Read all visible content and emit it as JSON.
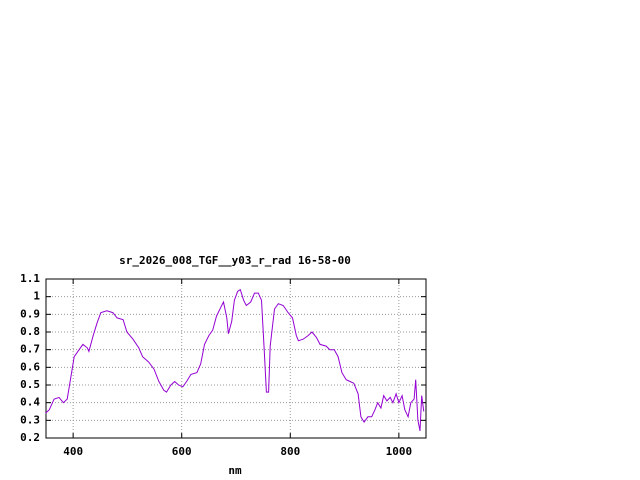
{
  "chart_data": {
    "type": "line",
    "title": "sr_2026_008_TGF__y03_r_rad 16-58-00",
    "xlabel": "nm",
    "xlim": [
      350,
      1050
    ],
    "xticks": [
      400,
      600,
      800,
      1000
    ],
    "ylim": [
      0.2,
      1.1
    ],
    "yticks": [
      0.2,
      0.3,
      0.4,
      0.5,
      0.6,
      0.7,
      0.8,
      0.9,
      1,
      1.1
    ],
    "grid": true,
    "x": [
      349,
      356,
      365,
      374,
      382,
      389,
      396,
      402,
      411,
      418,
      426,
      429,
      437,
      444,
      451,
      462,
      473,
      481,
      492,
      499,
      510,
      521,
      528,
      539,
      549,
      558,
      567,
      572,
      580,
      587,
      594,
      602,
      609,
      617,
      628,
      635,
      642,
      650,
      657,
      664,
      672,
      677,
      683,
      686,
      692,
      697,
      703,
      708,
      714,
      719,
      727,
      734,
      741,
      747,
      752,
      756,
      760,
      763,
      771,
      778,
      787,
      796,
      804,
      811,
      815,
      824,
      833,
      840,
      848,
      855,
      866,
      873,
      881,
      888,
      895,
      903,
      910,
      917,
      925,
      930,
      936,
      943,
      950,
      956,
      961,
      967,
      972,
      978,
      984,
      989,
      995,
      1000,
      1006,
      1011,
      1017,
      1022,
      1028,
      1031,
      1035,
      1039,
      1042,
      1046
    ],
    "series": [
      {
        "color": "#9400d3",
        "values": [
          0.34,
          0.36,
          0.42,
          0.43,
          0.4,
          0.42,
          0.55,
          0.66,
          0.7,
          0.73,
          0.71,
          0.69,
          0.78,
          0.85,
          0.91,
          0.92,
          0.91,
          0.88,
          0.87,
          0.8,
          0.76,
          0.71,
          0.66,
          0.63,
          0.59,
          0.52,
          0.47,
          0.46,
          0.5,
          0.52,
          0.5,
          0.49,
          0.52,
          0.56,
          0.57,
          0.62,
          0.73,
          0.78,
          0.81,
          0.89,
          0.94,
          0.97,
          0.88,
          0.79,
          0.86,
          0.98,
          1.03,
          1.04,
          0.98,
          0.95,
          0.97,
          1.02,
          1.02,
          0.98,
          0.7,
          0.46,
          0.46,
          0.72,
          0.93,
          0.96,
          0.95,
          0.91,
          0.88,
          0.78,
          0.75,
          0.76,
          0.78,
          0.8,
          0.77,
          0.73,
          0.72,
          0.7,
          0.7,
          0.66,
          0.57,
          0.53,
          0.52,
          0.51,
          0.45,
          0.32,
          0.29,
          0.32,
          0.32,
          0.36,
          0.4,
          0.37,
          0.44,
          0.41,
          0.43,
          0.4,
          0.45,
          0.4,
          0.44,
          0.36,
          0.32,
          0.4,
          0.42,
          0.53,
          0.3,
          0.24,
          0.44,
          0.35
        ]
      }
    ]
  }
}
